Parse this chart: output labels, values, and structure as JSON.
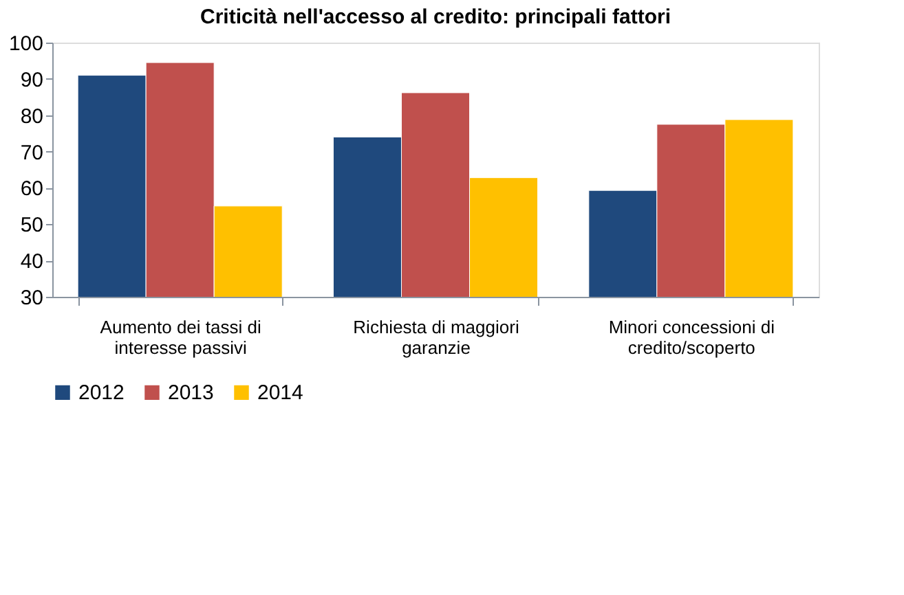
{
  "chart_data": {
    "type": "bar",
    "title": "Criticità nell'accesso al credito: principali fattori",
    "categories": [
      "Aumento dei tassi di interesse passivi",
      "Richiesta di maggiori garanzie",
      "Minori concessioni di credito/scoperto"
    ],
    "series": [
      {
        "name": "2012",
        "color": "#1f497d",
        "values": [
          91,
          74,
          59.3
        ]
      },
      {
        "name": "2013",
        "color": "#c0504d",
        "values": [
          94.5,
          86.2,
          77.5
        ]
      },
      {
        "name": "2014",
        "color": "#ffc000",
        "values": [
          55,
          62.8,
          78.8
        ]
      }
    ],
    "ylim": [
      30,
      100
    ],
    "yticks": [
      30,
      40,
      50,
      60,
      70,
      80,
      90,
      100
    ],
    "grid": false,
    "legend": "bottom"
  }
}
